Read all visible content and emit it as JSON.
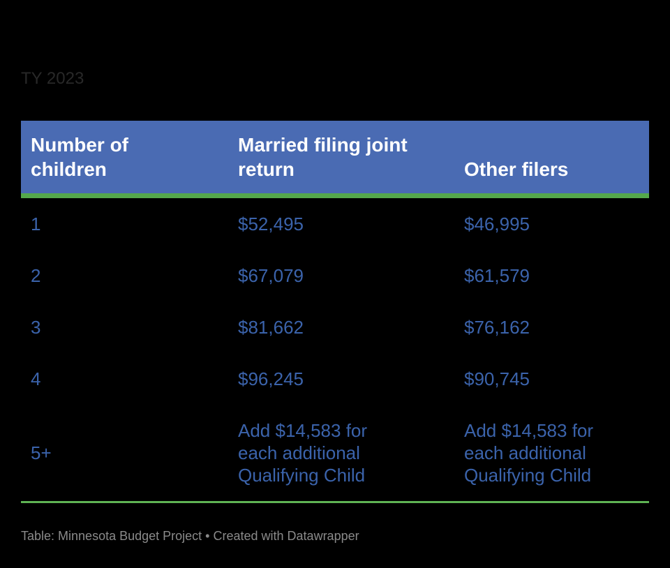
{
  "colors": {
    "background": "#000000",
    "header_bg": "#4a6bb3",
    "header_text": "#ffffff",
    "header_border_green": "#55a84c",
    "bottom_rule_green": "#5fb354",
    "body_text_blue": "#3b63ab",
    "intro_text": "#282828",
    "footer_text": "#8a8a8a"
  },
  "chart_data": {
    "type": "table",
    "intro": "TY 2023",
    "columns": [
      "Number of\nchildren",
      "Married filing joint\nreturn",
      "Other filers"
    ],
    "rows": [
      [
        "1",
        "$52,495",
        "$46,995"
      ],
      [
        "2",
        "$67,079",
        "$61,579"
      ],
      [
        "3",
        "$81,662",
        "$76,162"
      ],
      [
        "4",
        "$96,245",
        "$90,745"
      ],
      [
        "5+",
        "Add $14,583 for\neach additional\nQualifying Child",
        "Add $14,583 for\neach additional\nQualifying Child"
      ]
    ],
    "footer": {
      "prefix": "Table: ",
      "source": "Minnesota Budget Project",
      "separator": " • ",
      "attribution_prefix": "Created with ",
      "attribution_label": "Datawrapper"
    }
  }
}
